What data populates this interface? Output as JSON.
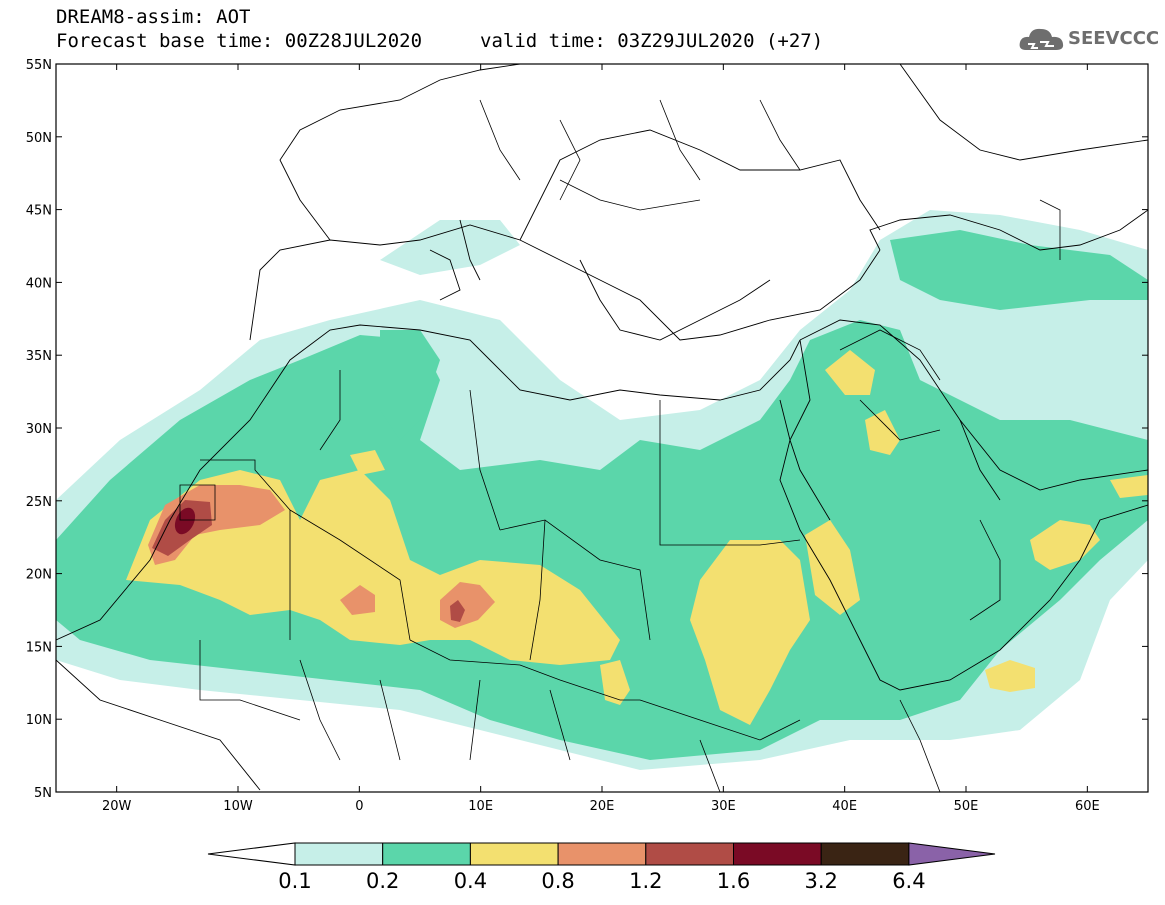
{
  "header": {
    "title_line1": "DREAM8-assim: AOT",
    "title_line2": "Forecast base time: 00Z28JUL2020",
    "valid_time": "valid time: 03Z29JUL2020 (+27)",
    "logo_text": "SEEVCCC"
  },
  "map": {
    "lon_range": [
      -25,
      65
    ],
    "lat_range": [
      5,
      55
    ],
    "lat_ticks": [
      "5N",
      "10N",
      "15N",
      "20N",
      "25N",
      "30N",
      "35N",
      "40N",
      "45N",
      "50N",
      "55N"
    ],
    "lon_ticks": [
      "20W",
      "10W",
      "0",
      "10E",
      "20E",
      "30E",
      "40E",
      "50E",
      "60E"
    ],
    "lat_tick_values": [
      5,
      10,
      15,
      20,
      25,
      30,
      35,
      40,
      45,
      50,
      55
    ],
    "lon_tick_values": [
      -20,
      -10,
      0,
      10,
      20,
      30,
      40,
      50,
      60
    ]
  },
  "colorbar": {
    "labels": [
      "0.1",
      "0.2",
      "0.4",
      "0.8",
      "1.2",
      "1.6",
      "3.2",
      "6.4"
    ],
    "levels": [
      0.1,
      0.2,
      0.4,
      0.8,
      1.2,
      1.6,
      3.2,
      6.4
    ],
    "colors": {
      "below": "#ffffff",
      "c1": "#c6efe8",
      "c2": "#5bd6aa",
      "c3": "#f3e070",
      "c4": "#e8926a",
      "c5": "#b04c46",
      "c6": "#7a0a25",
      "c7": "#3a2414",
      "above": "#8a62a8"
    }
  }
}
